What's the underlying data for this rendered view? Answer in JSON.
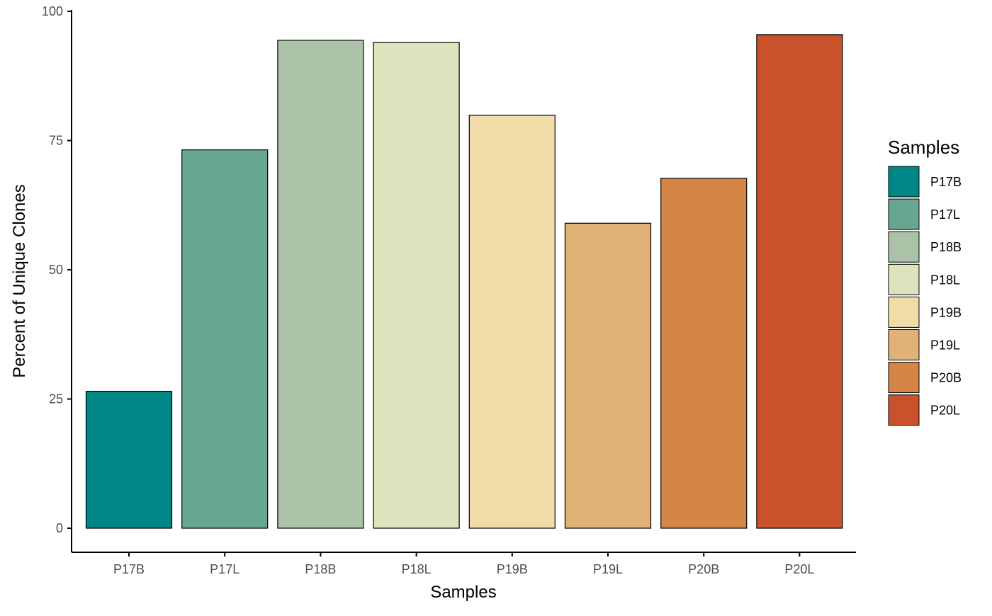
{
  "chart_data": {
    "type": "bar",
    "title": "",
    "xlabel": "Samples",
    "ylabel": "Percent of Unique Clones",
    "categories": [
      "P17B",
      "P17L",
      "P18B",
      "P18L",
      "P19B",
      "P19L",
      "P20B",
      "P20L"
    ],
    "values": [
      26.5,
      73.2,
      94.4,
      94.0,
      79.9,
      59.0,
      67.7,
      95.5
    ],
    "colors": [
      "#008785",
      "#69A68F",
      "#ABC2A8",
      "#DDE3BC",
      "#F0DCA9",
      "#E1B275",
      "#D58546",
      "#C9522C"
    ],
    "ylim": [
      0,
      100
    ],
    "yticks": [
      0,
      25,
      50,
      75,
      100
    ],
    "grid": false,
    "legend": {
      "title": "Samples",
      "position": "right",
      "entries": [
        "P17B",
        "P17L",
        "P18B",
        "P18L",
        "P19B",
        "P19L",
        "P20B",
        "P20L"
      ]
    }
  }
}
